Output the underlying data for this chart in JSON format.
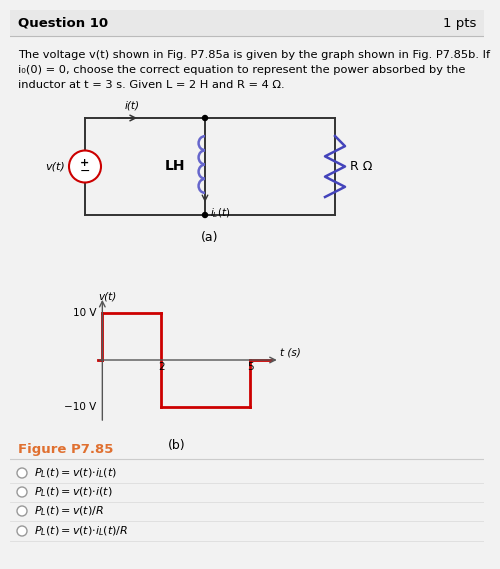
{
  "title": "Question 10",
  "pts": "1 pts",
  "body_line1": "The voltage v(t) shown in Fig. P7.85a is given by the graph shown in Fig. P7.85b. If",
  "body_line2": "i₀(0) = 0, choose the correct equation to represent the power absorbed by the",
  "body_line3": "inductor at t = 3 s. Given L = 2 H and R = 4 Ω.",
  "figure_label": "Figure P7.85",
  "circuit_label_a": "(a)",
  "circuit_label_b": "(b)",
  "graph_color": "#cc0000",
  "figure_label_color": "#e07030",
  "background_color": "#f2f2f2",
  "header_color": "#e8e8e8",
  "inductor_color": "#6666cc",
  "resistor_color": "#4444bb",
  "source_color": "#cc0000",
  "wire_color": "#333333",
  "option_texts": [
    "P_L(t) = v(t)*i_L(t)",
    "P_L(t) = v(t)*i(t)",
    "P_L(t) = v(t)/R",
    "P_L(t) = v(t)*i_L(t)/R"
  ]
}
